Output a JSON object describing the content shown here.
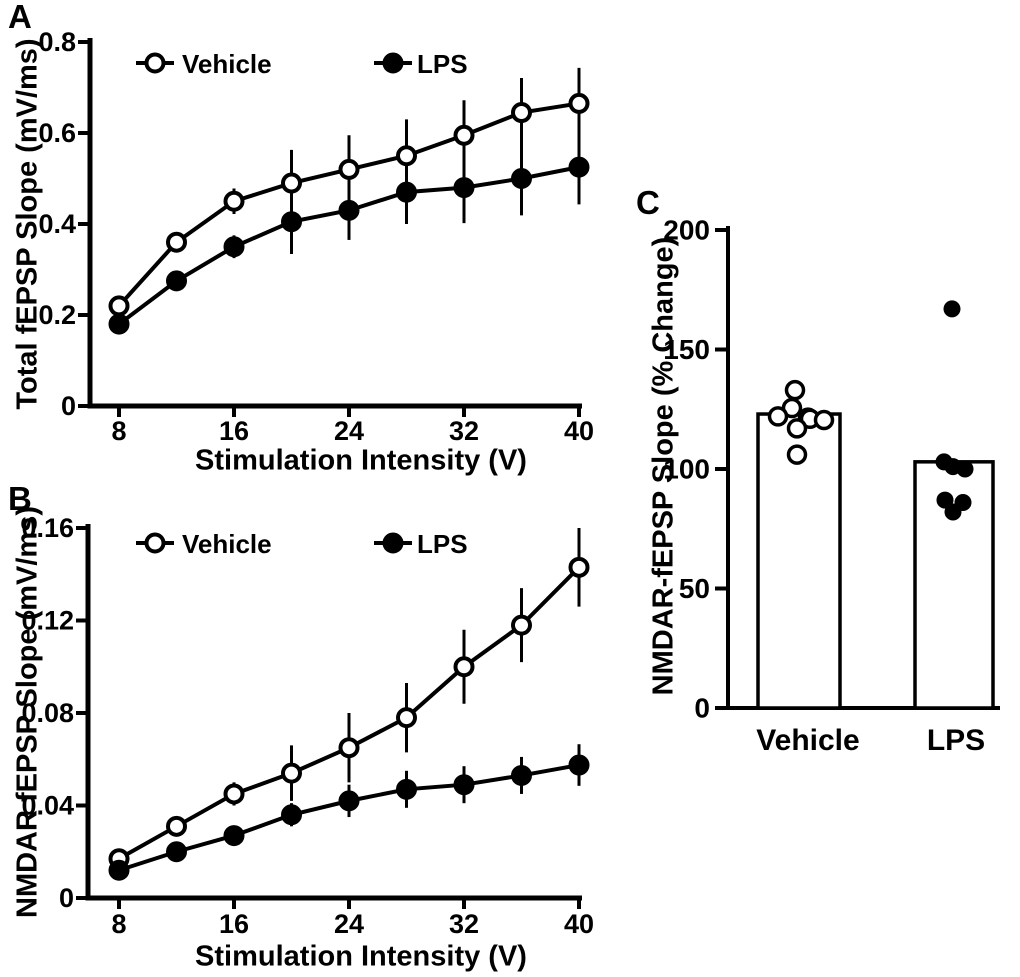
{
  "figure": {
    "background": "#ffffff",
    "ink": "#000000"
  },
  "legend": {
    "vehicle": "Vehicle",
    "lps": "LPS"
  },
  "chart_data": [
    {
      "id": "panel-a",
      "panel_label": "A",
      "type": "line",
      "xlabel": "Stimulation Intensity (V)",
      "ylabel": "Total fEPSP Slope (mV/ms)",
      "x": [
        8,
        12,
        16,
        20,
        24,
        28,
        32,
        36,
        40
      ],
      "xticks": [
        8,
        16,
        24,
        32,
        40
      ],
      "xlim": [
        6,
        40
      ],
      "ylim": [
        0,
        0.8
      ],
      "yticks": [
        0,
        0.2,
        0.4,
        0.6,
        0.8
      ],
      "ytick_labels": [
        "0",
        "0.2",
        "0.4",
        "0.6",
        "0.8"
      ],
      "grid": false,
      "legend_position": "top-inside",
      "series": [
        {
          "name": "Vehicle",
          "marker": "open-circle",
          "values": [
            0.22,
            0.36,
            0.45,
            0.49,
            0.52,
            0.55,
            0.595,
            0.645,
            0.665
          ],
          "errors": [
            0.012,
            0.02,
            0.028,
            0.073,
            0.075,
            0.08,
            0.077,
            0.076,
            0.078
          ]
        },
        {
          "name": "LPS",
          "marker": "filled-circle",
          "values": [
            0.18,
            0.275,
            0.35,
            0.405,
            0.43,
            0.47,
            0.48,
            0.5,
            0.525
          ],
          "errors": [
            0.012,
            0.018,
            0.025,
            0.071,
            0.065,
            0.07,
            0.078,
            0.081,
            0.082
          ]
        }
      ]
    },
    {
      "id": "panel-b",
      "panel_label": "B",
      "type": "line",
      "xlabel": "Stimulation Intensity (V)",
      "ylabel": "NMDAR fEPSP Slope (mV/ms)",
      "x": [
        8,
        12,
        16,
        20,
        24,
        28,
        32,
        36,
        40
      ],
      "xticks": [
        8,
        16,
        24,
        32,
        40
      ],
      "xlim": [
        6,
        40
      ],
      "ylim": [
        0,
        0.16
      ],
      "yticks": [
        0,
        0.04,
        0.08,
        0.12,
        0.16
      ],
      "ytick_labels": [
        "0",
        "0.04",
        "0.08",
        "0.12",
        "0.16"
      ],
      "grid": false,
      "legend_position": "top-inside",
      "series": [
        {
          "name": "Vehicle",
          "marker": "open-circle",
          "values": [
            0.017,
            0.031,
            0.045,
            0.054,
            0.065,
            0.078,
            0.1,
            0.118,
            0.143
          ],
          "errors": [
            0.003,
            0.004,
            0.005,
            0.012,
            0.015,
            0.015,
            0.016,
            0.016,
            0.017
          ]
        },
        {
          "name": "LPS",
          "marker": "filled-circle",
          "values": [
            0.012,
            0.02,
            0.027,
            0.036,
            0.042,
            0.047,
            0.049,
            0.053,
            0.0575
          ],
          "errors": [
            0.002,
            0.003,
            0.004,
            0.005,
            0.007,
            0.008,
            0.008,
            0.008,
            0.009
          ]
        }
      ]
    },
    {
      "id": "panel-c",
      "panel_label": "C",
      "type": "bar",
      "ylabel": "NMDAR-fEPSP Slope (% Change)",
      "categories": [
        "Vehicle",
        "LPS"
      ],
      "bar_values": [
        123,
        103
      ],
      "ylim": [
        0,
        200
      ],
      "yticks": [
        0,
        50,
        100,
        150,
        200
      ],
      "ytick_labels": [
        "0",
        "50",
        "100",
        "150",
        "200"
      ],
      "grid": false,
      "points": [
        {
          "category": "Vehicle",
          "marker": "open-circle",
          "values": [
            133,
            125.5,
            122,
            121.5,
            121,
            120.5,
            117,
            106
          ],
          "x_offsets": [
            -4,
            -7,
            -21,
            9,
            11,
            25,
            -2,
            -2
          ]
        },
        {
          "category": "LPS",
          "marker": "filled-circle",
          "values": [
            167,
            103,
            101,
            100,
            87,
            86,
            82
          ],
          "x_offsets": [
            -2,
            -10,
            -1,
            11,
            -9,
            9,
            -1
          ]
        }
      ]
    }
  ]
}
